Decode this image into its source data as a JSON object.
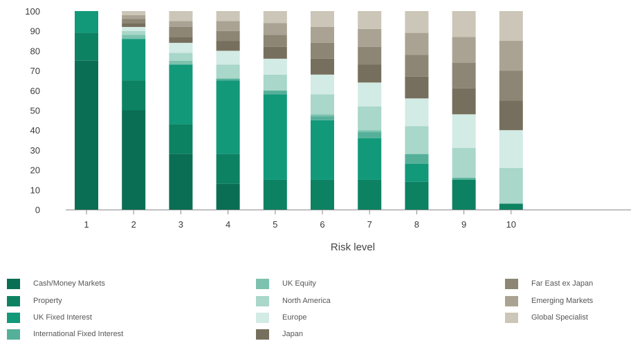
{
  "chart_data": {
    "type": "bar",
    "stacked": true,
    "xlabel": "Risk level",
    "ylabel": "",
    "ylim": [
      0,
      100
    ],
    "yticks": [
      0,
      10,
      20,
      30,
      40,
      50,
      60,
      70,
      80,
      90,
      100
    ],
    "categories": [
      "1",
      "2",
      "3",
      "4",
      "5",
      "6",
      "7",
      "8",
      "9",
      "10"
    ],
    "grid": false,
    "legend_position": "bottom",
    "series": [
      {
        "name": "Cash/Money Markets",
        "color": "#0a6e54",
        "values": [
          75,
          50,
          28,
          13,
          0,
          0,
          0,
          0,
          0,
          0
        ]
      },
      {
        "name": "Property",
        "color": "#0d8263",
        "values": [
          14,
          15,
          15,
          15,
          15,
          15,
          15,
          14,
          15,
          3
        ]
      },
      {
        "name": "UK Fixed Interest",
        "color": "#12997a",
        "values": [
          11,
          21,
          30,
          37,
          43,
          30,
          21,
          9,
          0,
          0
        ]
      },
      {
        "name": "International Fixed Interest",
        "color": "#55b09a",
        "values": [
          0,
          0,
          0,
          1,
          2,
          2,
          3,
          5,
          1,
          0
        ]
      },
      {
        "name": "UK Equity",
        "color": "#7cc2ae",
        "values": [
          0,
          2,
          2,
          0,
          0,
          1,
          1,
          0,
          0,
          0
        ]
      },
      {
        "name": "North America",
        "color": "#a9d7ca",
        "values": [
          0,
          2,
          4,
          7,
          8,
          10,
          12,
          14,
          15,
          18
        ]
      },
      {
        "name": "Europe",
        "color": "#d2ebe4",
        "values": [
          0,
          2,
          5,
          7,
          8,
          10,
          12,
          14,
          17,
          19
        ]
      },
      {
        "name": "Japan",
        "color": "#776f5e",
        "values": [
          0,
          2,
          3,
          5,
          6,
          8,
          9,
          11,
          13,
          15
        ]
      },
      {
        "name": "Far East ex Japan",
        "color": "#8d8675",
        "values": [
          0,
          2,
          5,
          5,
          6,
          8,
          9,
          11,
          13,
          15
        ]
      },
      {
        "name": "Emerging Markets",
        "color": "#aaa393",
        "values": [
          0,
          2,
          3,
          5,
          6,
          8,
          9,
          11,
          13,
          15
        ]
      },
      {
        "name": "Global Specialist",
        "color": "#ccc6b8",
        "values": [
          0,
          2,
          5,
          5,
          6,
          8,
          9,
          11,
          13,
          15
        ]
      }
    ]
  }
}
